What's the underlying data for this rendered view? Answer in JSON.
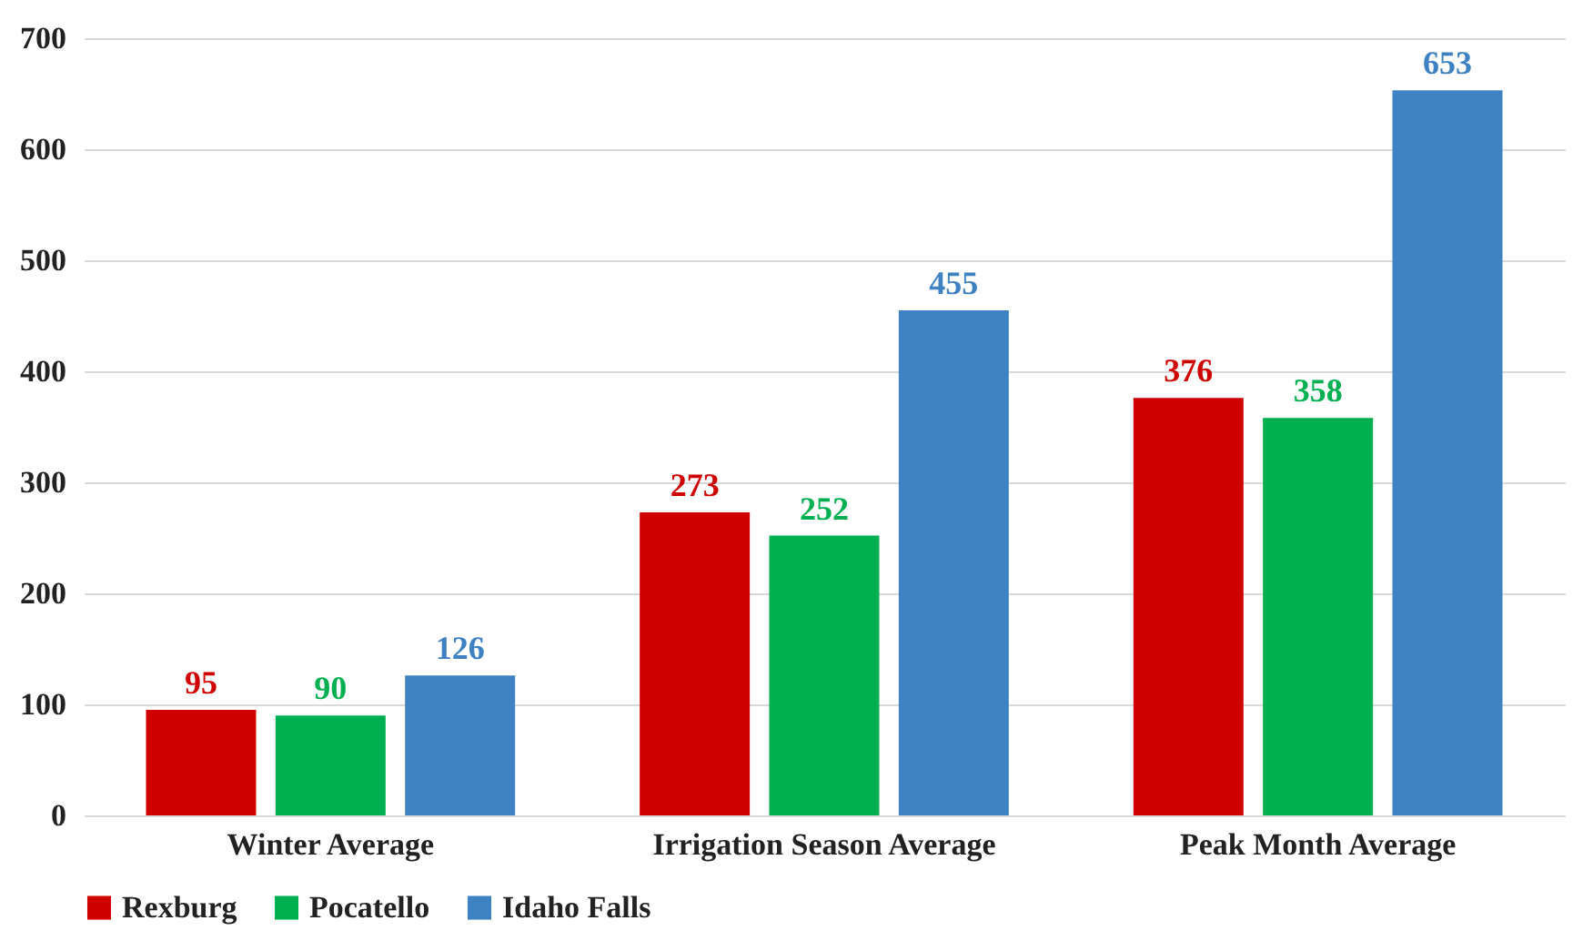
{
  "chart_data": {
    "type": "bar",
    "categories": [
      "Winter Average",
      "Irrigation Season Average",
      "Peak Month Average"
    ],
    "series": [
      {
        "name": "Rexburg",
        "color": "#d00000",
        "values": [
          95,
          273,
          376
        ]
      },
      {
        "name": "Pocatello",
        "color": "#00b050",
        "values": [
          90,
          252,
          358
        ]
      },
      {
        "name": "Idaho Falls",
        "color": "#3f82c4",
        "values": [
          126,
          455,
          653
        ]
      }
    ],
    "ylim": [
      0,
      700
    ],
    "yticks": [
      0,
      100,
      200,
      300,
      400,
      500,
      600,
      700
    ],
    "grid": "y",
    "legend": "bottom",
    "data_labels": true
  }
}
